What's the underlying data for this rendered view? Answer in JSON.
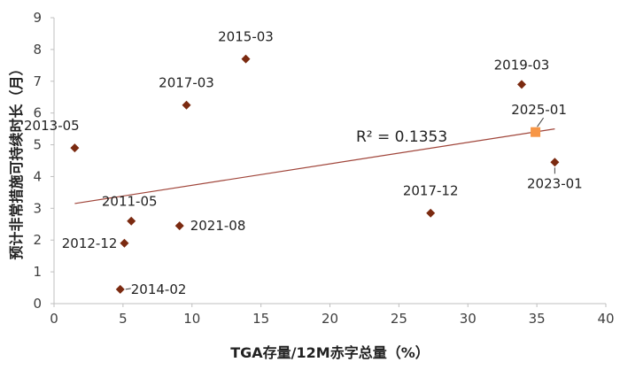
{
  "chart_data": {
    "type": "scatter",
    "xlabel": "TGA存量/12M赤字总量（%）",
    "ylabel": "预计非常措施可持续时长（月）",
    "xlim": [
      0,
      40
    ],
    "ylim": [
      0,
      9
    ],
    "x_ticks": [
      0,
      5,
      10,
      15,
      20,
      25,
      30,
      35,
      40
    ],
    "y_ticks": [
      0,
      1,
      2,
      3,
      4,
      5,
      6,
      7,
      8,
      9
    ],
    "grid": false,
    "legend": "none",
    "colors": {
      "point": "#7B2A10",
      "highlight": "#F79646",
      "trend": "#A0453A",
      "axis": "#BFBFBF"
    },
    "points": [
      {
        "label": "2013-05",
        "x": 1.5,
        "y": 4.9
      },
      {
        "label": "2011-05",
        "x": 5.6,
        "y": 2.6
      },
      {
        "label": "2012-12",
        "x": 5.1,
        "y": 1.9
      },
      {
        "label": "2014-02",
        "x": 4.8,
        "y": 0.45
      },
      {
        "label": "2017-03",
        "x": 9.6,
        "y": 6.25
      },
      {
        "label": "2021-08",
        "x": 9.1,
        "y": 2.45
      },
      {
        "label": "2015-03",
        "x": 13.9,
        "y": 7.7
      },
      {
        "label": "2017-12",
        "x": 27.3,
        "y": 2.85
      },
      {
        "label": "2019-03",
        "x": 33.9,
        "y": 6.9
      },
      {
        "label": "2023-01",
        "x": 36.3,
        "y": 4.45
      }
    ],
    "highlight": {
      "label": "2025-01",
      "x": 34.9,
      "y": 5.4
    },
    "trendline": {
      "x1": 1.5,
      "y1": 3.15,
      "x2": 36.3,
      "y2": 5.5,
      "r2_text": "R² = 0.1353"
    }
  }
}
